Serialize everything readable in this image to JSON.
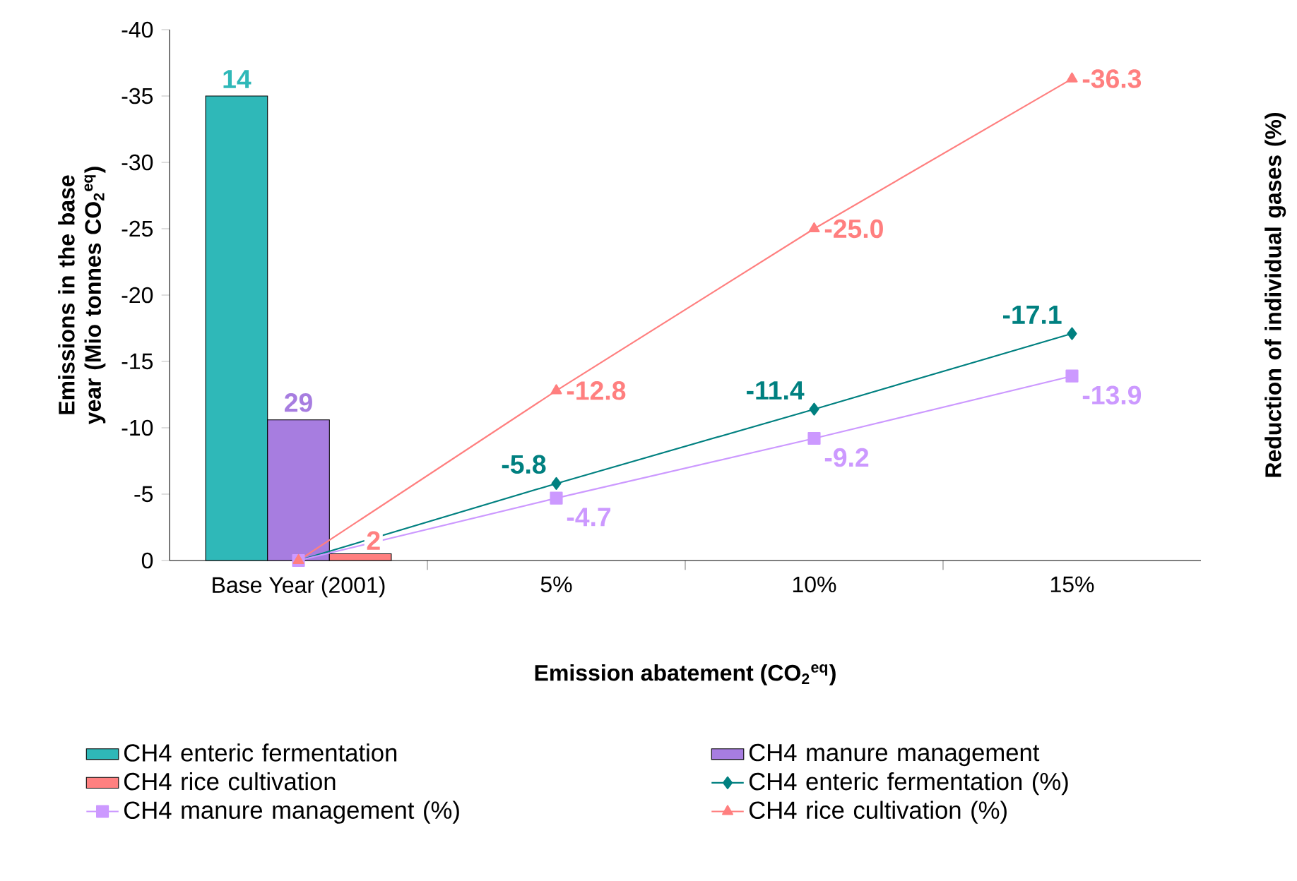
{
  "chart_data": {
    "type": "bar",
    "xlabel": "Emission abatement (CO$_{2}$$^{eq}$)",
    "ylabel": "Emissions in the base year (Mio tonnes CO$_{2}$$^{eq}$)",
    "y2label": "Reduction of individual gases (%)",
    "categories": [
      "Base Year (2001)",
      "5%",
      "10%",
      "15%"
    ],
    "ylim": [
      0,
      -40
    ],
    "yticks": [
      0,
      -5,
      -10,
      -15,
      -20,
      -25,
      -30,
      -35,
      -40
    ],
    "legend": "bottom",
    "grid": false,
    "series": [
      {
        "name": "CH4 enteric fermentation",
        "type": "bar",
        "color": "#2fb8b8",
        "values": [
          -35,
          null,
          null,
          null
        ]
      },
      {
        "name": "CH4 manure management",
        "type": "bar",
        "color": "#a77de0",
        "values": [
          -10.6,
          null,
          null,
          null
        ]
      },
      {
        "name": "CH4 rice cultivation",
        "type": "bar",
        "color": "#ff8080",
        "values": [
          -0.5,
          null,
          null,
          null
        ]
      },
      {
        "name": "CH4 enteric fermentation (%)",
        "type": "line",
        "color": "#008080",
        "marker": "diamond",
        "values": [
          0,
          -5.8,
          -11.4,
          -17.1
        ],
        "value_labels": [
          null,
          "-5.8",
          "-11.4",
          "-17.1"
        ]
      },
      {
        "name": "CH4 manure management (%)",
        "type": "line",
        "color": "#cc99ff",
        "marker": "square",
        "values": [
          0,
          -4.7,
          -9.2,
          -13.9
        ],
        "value_labels": [
          null,
          "-4.7",
          "-9.2",
          "-13.9"
        ]
      },
      {
        "name": "CH4 rice cultivation (%)",
        "type": "line",
        "color": "#ff7f7f",
        "marker": "triangle",
        "values": [
          0,
          -12.8,
          -25.0,
          -36.3
        ],
        "value_labels": [
          null,
          "-12.8",
          "-25.0",
          "-36.3"
        ]
      }
    ],
    "annotations": [
      "14",
      "29",
      "2"
    ]
  }
}
